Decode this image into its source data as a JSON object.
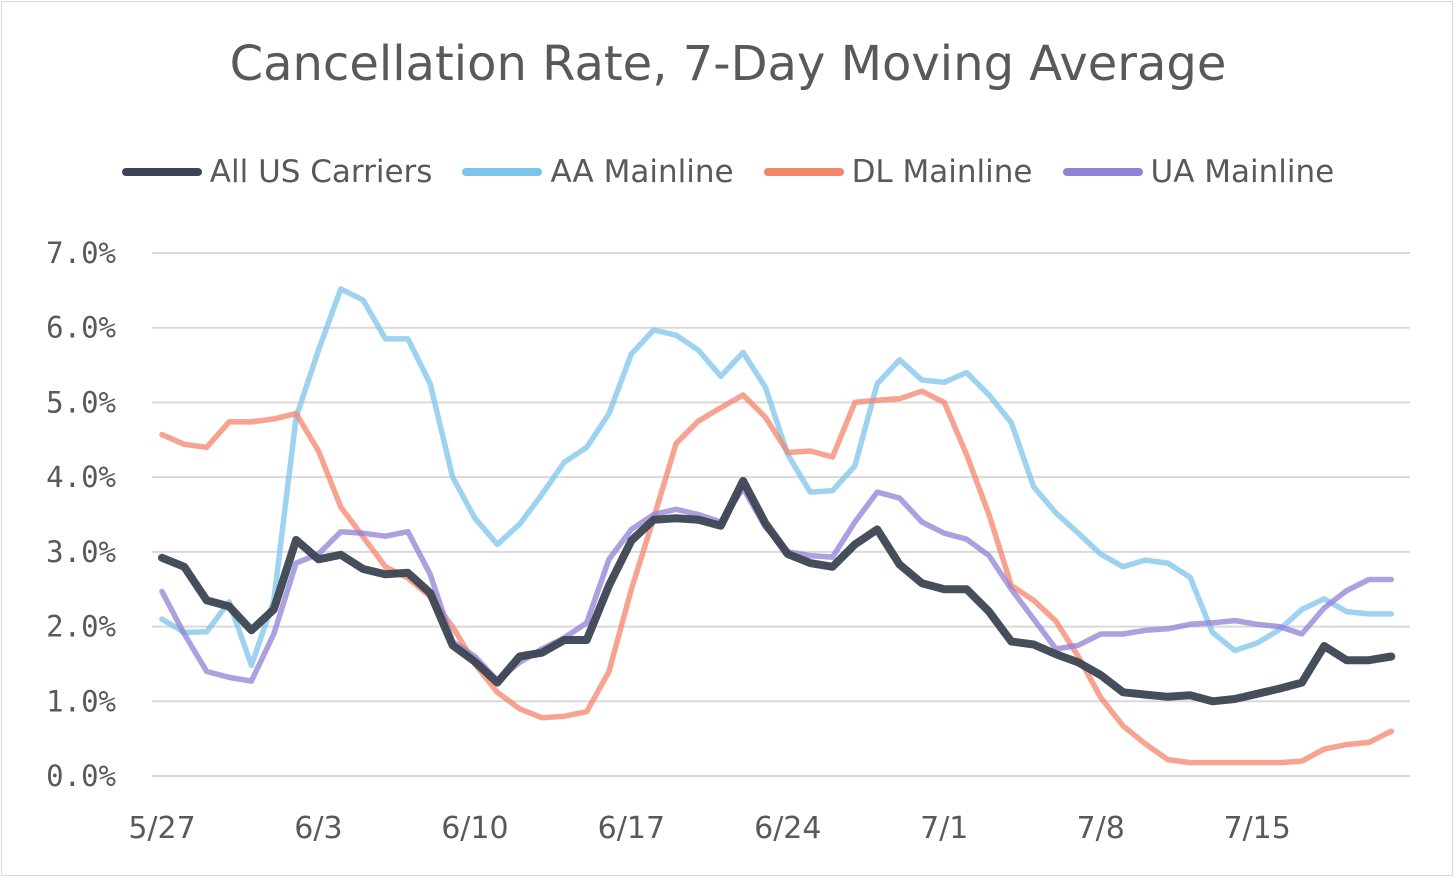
{
  "chart_data": {
    "type": "line",
    "title": "Cancellation Rate, 7-Day Moving Average",
    "xlabel": "",
    "ylabel": "",
    "x_ticks": [
      "5/27",
      "6/3",
      "6/10",
      "6/17",
      "6/24",
      "7/1",
      "7/8",
      "7/15"
    ],
    "y_ticks": [
      "0.0%",
      "1.0%",
      "2.0%",
      "3.0%",
      "4.0%",
      "5.0%",
      "6.0%",
      "7.0%"
    ],
    "ylim": [
      0,
      7
    ],
    "x_range_days": [
      0,
      55
    ],
    "grid": true,
    "legend_position": "top",
    "series": [
      {
        "name": "AA Mainline",
        "color": "#7cc4ec",
        "values": [
          2.1,
          1.92,
          1.93,
          2.33,
          1.48,
          2.35,
          4.8,
          5.7,
          6.52,
          6.37,
          5.85,
          5.85,
          5.25,
          4.0,
          3.45,
          3.1,
          3.37,
          3.77,
          4.2,
          4.4,
          4.85,
          5.65,
          5.97,
          5.9,
          5.7,
          5.35,
          5.67,
          5.2,
          4.3,
          3.8,
          3.82,
          4.15,
          5.25,
          5.57,
          5.3,
          5.27,
          5.4,
          5.1,
          4.73,
          3.87,
          3.52,
          3.25,
          2.97,
          2.8,
          2.89,
          2.85,
          2.66,
          1.92,
          1.68,
          1.78,
          1.96,
          2.23,
          2.37,
          2.2,
          2.17,
          2.17
        ]
      },
      {
        "name": "DL Mainline",
        "color": "#f4846a",
        "values": [
          4.57,
          4.44,
          4.4,
          4.74,
          4.74,
          4.78,
          4.85,
          4.35,
          3.6,
          3.2,
          2.8,
          2.65,
          2.4,
          2.0,
          1.5,
          1.12,
          0.9,
          0.78,
          0.8,
          0.86,
          1.4,
          2.5,
          3.45,
          4.45,
          4.75,
          4.93,
          5.1,
          4.8,
          4.33,
          4.35,
          4.27,
          5.0,
          5.03,
          5.05,
          5.15,
          5.0,
          4.3,
          3.5,
          2.55,
          2.35,
          2.07,
          1.6,
          1.05,
          0.67,
          0.43,
          0.22,
          0.18,
          0.18,
          0.18,
          0.18,
          0.18,
          0.2,
          0.36,
          0.42,
          0.45,
          0.6
        ]
      },
      {
        "name": "UA Mainline",
        "color": "#8f81d6",
        "values": [
          2.47,
          1.9,
          1.4,
          1.32,
          1.27,
          1.9,
          2.85,
          2.97,
          3.27,
          3.25,
          3.21,
          3.27,
          2.7,
          1.8,
          1.6,
          1.28,
          1.52,
          1.7,
          1.85,
          2.05,
          2.9,
          3.3,
          3.5,
          3.57,
          3.5,
          3.4,
          3.85,
          3.33,
          3.0,
          2.95,
          2.93,
          3.4,
          3.8,
          3.72,
          3.4,
          3.25,
          3.17,
          2.95,
          2.5,
          2.1,
          1.7,
          1.75,
          1.9,
          1.9,
          1.95,
          1.97,
          2.03,
          2.05,
          2.08,
          2.03,
          2.0,
          1.9,
          2.25,
          2.48,
          2.63,
          2.63
        ]
      },
      {
        "name": "All US Carriers",
        "color": "#3d4452",
        "values": [
          2.92,
          2.8,
          2.35,
          2.27,
          1.95,
          2.23,
          3.16,
          2.9,
          2.96,
          2.77,
          2.7,
          2.72,
          2.45,
          1.75,
          1.53,
          1.25,
          1.6,
          1.65,
          1.82,
          1.82,
          2.55,
          3.15,
          3.43,
          3.45,
          3.43,
          3.35,
          3.95,
          3.38,
          2.97,
          2.85,
          2.8,
          3.1,
          3.3,
          2.83,
          2.58,
          2.5,
          2.5,
          2.2,
          1.8,
          1.76,
          1.63,
          1.52,
          1.35,
          1.12,
          1.09,
          1.06,
          1.08,
          1.0,
          1.03,
          1.1,
          1.17,
          1.25,
          1.74,
          1.55,
          1.55,
          1.6
        ]
      }
    ]
  }
}
